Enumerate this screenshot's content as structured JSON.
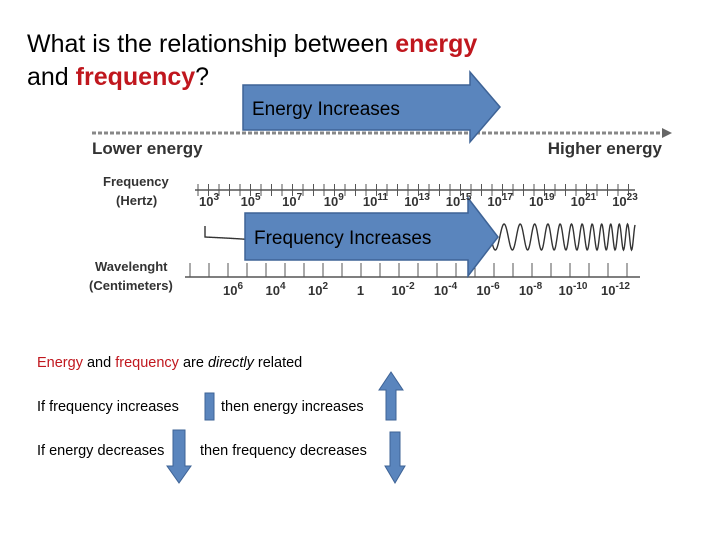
{
  "title": {
    "text1": "What is the relationship between",
    "energy": "energy",
    "text2": "and",
    "frequency": "frequency",
    "end": "?"
  },
  "arrows": {
    "energy": "Energy Increases",
    "frequency": "Frequency Increases"
  },
  "spectrum": {
    "lower": "Lower energy",
    "higher": "Higher energy",
    "frequency_label": "Frequency",
    "frequency_unit": "(Hertz)",
    "frequency_ticks": [
      {
        "base": "10",
        "exp": "3"
      },
      {
        "base": "10",
        "exp": "5"
      },
      {
        "base": "10",
        "exp": "7"
      },
      {
        "base": "10",
        "exp": "9"
      },
      {
        "base": "10",
        "exp": "11"
      },
      {
        "base": "10",
        "exp": "13"
      },
      {
        "base": "10",
        "exp": "15"
      },
      {
        "base": "10",
        "exp": "17"
      },
      {
        "base": "10",
        "exp": "19"
      },
      {
        "base": "10",
        "exp": "21"
      },
      {
        "base": "10",
        "exp": "23"
      }
    ],
    "wavelength_label": "Wavelenght",
    "wavelength_unit": "(Centimeters)",
    "wavelength_ticks": [
      {
        "base": "10",
        "exp": "6"
      },
      {
        "base": "10",
        "exp": "4"
      },
      {
        "base": "10",
        "exp": "2"
      },
      {
        "base": "1"
      },
      {
        "base": "10",
        "exp": "-2"
      },
      {
        "base": "10",
        "exp": "-4"
      },
      {
        "base": "10",
        "exp": "-6"
      },
      {
        "base": "10",
        "exp": "-8"
      },
      {
        "base": "10",
        "exp": "-10"
      },
      {
        "base": "10",
        "exp": "-12"
      }
    ]
  },
  "body": {
    "energy": "Energy",
    "and": "and",
    "frequency": "frequency",
    "are": "are",
    "directly": "directly",
    "related": "related",
    "line1_left": "If frequency increases",
    "line1_right": "then energy increases",
    "line2_left": "If energy decreases",
    "line2_right": "then frequency decreases"
  }
}
